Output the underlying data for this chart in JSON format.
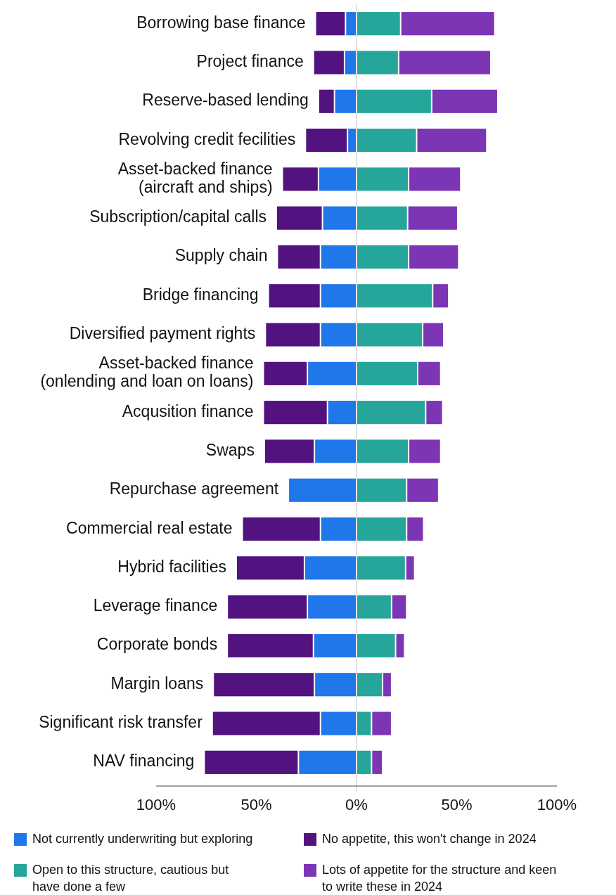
{
  "chart_data": {
    "type": "bar",
    "orientation": "horizontal",
    "stacked": true,
    "legend": "bottom",
    "categories": [
      "Borrowing base finance",
      "Project finance",
      "Reserve-based lending",
      "Revolving credit fecilities",
      "Asset-backed finance (aircraft and ships)",
      "Subscription/capital calls",
      "Supply chain",
      "Bridge financing",
      "Diversified payment rights",
      "Asset-backed finance (onlending and loan on loans)",
      "Acqusition finance",
      "Swaps",
      "Repurchase agreement",
      "Commercial real estate",
      "Hybrid facilities",
      "Leverage finance",
      "Corporate bonds",
      "Margin loans",
      "Significant risk transfer",
      "NAV financing"
    ],
    "series": [
      {
        "name": "Not currently underwriting but exploring",
        "color": "#1f77ea",
        "values": [
          -5.5,
          -6,
          -11,
          -4.5,
          -19,
          -17,
          -18,
          -18,
          -18,
          -24.5,
          -14.5,
          -21,
          -34,
          -18,
          -26,
          -24.5,
          -21.5,
          -21,
          -18,
          -29
        ]
      },
      {
        "name": "No appetite, this won't change in 2024",
        "color": "#52127f",
        "values": [
          -15,
          -15.5,
          -8,
          -21,
          -18,
          -23,
          -21.5,
          -26,
          -27.5,
          -22,
          -32,
          -25,
          0,
          -39,
          -34,
          -40,
          -43,
          -50.5,
          -54,
          -47
        ]
      },
      {
        "name": "Open to this structure, cautious but have done a few",
        "color": "#26a69a",
        "values": [
          22,
          21,
          37.5,
          30,
          26,
          25.5,
          26,
          38,
          33,
          30.5,
          34.5,
          26,
          25,
          25,
          24.5,
          17.5,
          19.5,
          13,
          7.5,
          7.5
        ]
      },
      {
        "name": "Lots of appetite for the structure and keen to write these in 2024",
        "color": "#7b35b5",
        "values": [
          47,
          46,
          33,
          35,
          26,
          25,
          25,
          8,
          10.5,
          11.5,
          8.5,
          16,
          16,
          8.5,
          4.5,
          7.5,
          4.5,
          4.5,
          10,
          5.5
        ]
      }
    ],
    "xlim": [
      -100,
      100
    ],
    "xticks": [
      {
        "value": -100,
        "label": "100%"
      },
      {
        "value": -50,
        "label": "50%"
      },
      {
        "value": 0,
        "label": "0%"
      },
      {
        "value": 50,
        "label": "50%"
      },
      {
        "value": 100,
        "label": "100%"
      }
    ],
    "ref_lines": [
      {
        "axis": "x",
        "value": 0,
        "color": "#d9d9d9"
      }
    ]
  }
}
